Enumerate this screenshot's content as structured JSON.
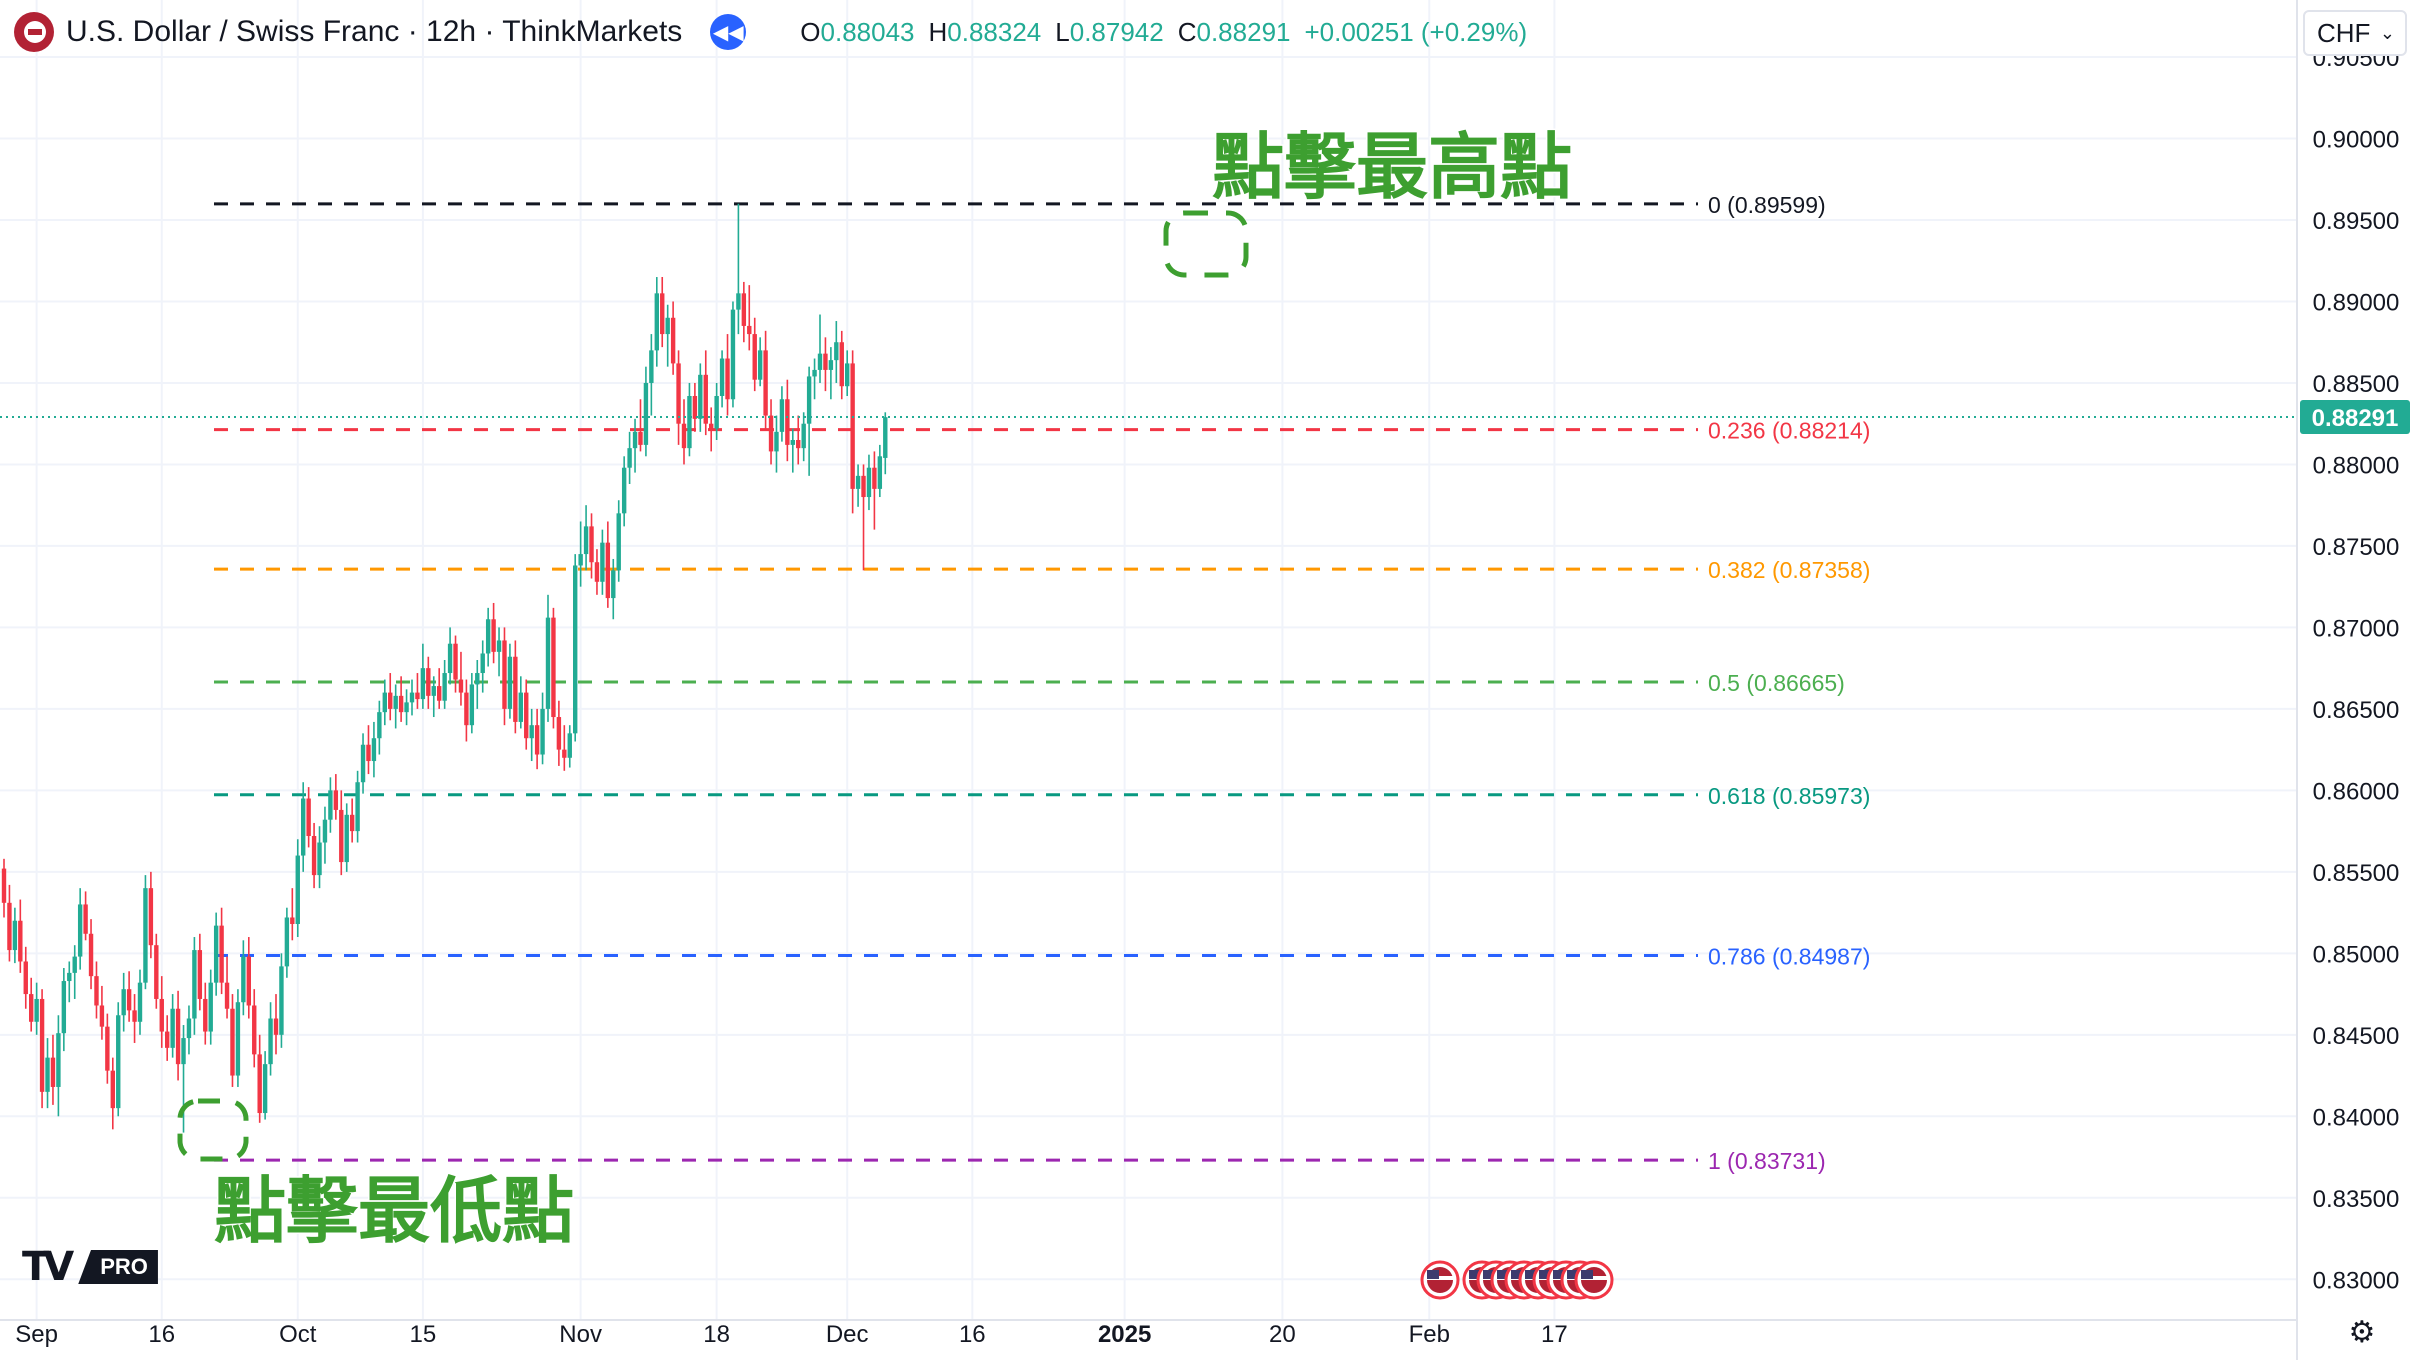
{
  "header": {
    "symbol": "U.S. Dollar / Swiss Franc · 12h · ThinkMarkets",
    "open_label": "O",
    "open": "0.88043",
    "high_label": "H",
    "high": "0.88324",
    "low_label": "L",
    "low": "0.87942",
    "close_label": "C",
    "close": "0.88291",
    "change": "+0.00251 (+0.29%)"
  },
  "currency_button": {
    "label": "CHF"
  },
  "logo": {
    "text": "PRO"
  },
  "icons": {
    "flag": "us-flag-icon",
    "replay": "rewind-icon",
    "dropdown": "chevron-down-icon",
    "settings": "gear-icon",
    "events": "us-flag-event-icon"
  },
  "colors": {
    "up": "#22ab94",
    "down": "#f23645",
    "annotation": "#3d9f30"
  },
  "annotations": {
    "high": "點擊最高點",
    "low": "點擊最低點"
  },
  "chart_data": {
    "type": "candlestick",
    "ylim": [
      0.8275,
      0.9085
    ],
    "y_ticks": [
      "0.90500",
      "0.90000",
      "0.89500",
      "0.89000",
      "0.88500",
      "0.88000",
      "0.87500",
      "0.87000",
      "0.86500",
      "0.86000",
      "0.85500",
      "0.85000",
      "0.84500",
      "0.84000",
      "0.83500",
      "0.83000"
    ],
    "x_ticks": [
      {
        "label": "Sep",
        "i": 6
      },
      {
        "label": "16",
        "i": 29
      },
      {
        "label": "Oct",
        "i": 54
      },
      {
        "label": "15",
        "i": 77
      },
      {
        "label": "Nov",
        "i": 106
      },
      {
        "label": "18",
        "i": 131
      },
      {
        "label": "Dec",
        "i": 155
      },
      {
        "label": "16",
        "i": 178
      },
      {
        "label": "2025",
        "i": 206
      },
      {
        "label": "20",
        "i": 235
      },
      {
        "label": "Feb",
        "i": 262
      },
      {
        "label": "17",
        "i": 285
      }
    ],
    "last_price": "0.88291",
    "fibonacci": [
      {
        "level": "0",
        "value": "0.89599",
        "color": "#131722"
      },
      {
        "level": "0.236",
        "value": "0.88214",
        "color": "#f23645"
      },
      {
        "level": "0.382",
        "value": "0.87358",
        "color": "#ff9800"
      },
      {
        "level": "0.5",
        "value": "0.86665",
        "color": "#4caf50"
      },
      {
        "level": "0.618",
        "value": "0.85973",
        "color": "#089981"
      },
      {
        "level": "0.786",
        "value": "0.84987",
        "color": "#2962ff"
      },
      {
        "level": "1",
        "value": "0.83731",
        "color": "#9c27b0"
      }
    ],
    "candles": [
      [
        0.8552,
        0.8558,
        0.8522,
        0.8531
      ],
      [
        0.8531,
        0.8542,
        0.8495,
        0.8502
      ],
      [
        0.8502,
        0.8528,
        0.8494,
        0.852
      ],
      [
        0.852,
        0.8533,
        0.8488,
        0.8495
      ],
      [
        0.8495,
        0.8504,
        0.8466,
        0.8475
      ],
      [
        0.8475,
        0.8485,
        0.8452,
        0.8458
      ],
      [
        0.8458,
        0.8482,
        0.845,
        0.8472
      ],
      [
        0.8472,
        0.8478,
        0.8405,
        0.8415
      ],
      [
        0.8415,
        0.8448,
        0.8405,
        0.8436
      ],
      [
        0.8436,
        0.845,
        0.8407,
        0.8418
      ],
      [
        0.8418,
        0.8462,
        0.84,
        0.8451
      ],
      [
        0.8451,
        0.8491,
        0.844,
        0.8483
      ],
      [
        0.8483,
        0.8495,
        0.847,
        0.8488
      ],
      [
        0.8488,
        0.8505,
        0.8472,
        0.8498
      ],
      [
        0.8498,
        0.854,
        0.849,
        0.853
      ],
      [
        0.853,
        0.8538,
        0.8508,
        0.8512
      ],
      [
        0.8512,
        0.8521,
        0.8478,
        0.8486
      ],
      [
        0.8486,
        0.8495,
        0.846,
        0.8468
      ],
      [
        0.8468,
        0.848,
        0.8447,
        0.8455
      ],
      [
        0.8455,
        0.8463,
        0.842,
        0.8428
      ],
      [
        0.8428,
        0.8436,
        0.8392,
        0.8405
      ],
      [
        0.8405,
        0.847,
        0.84,
        0.8462
      ],
      [
        0.8462,
        0.8488,
        0.8452,
        0.8478
      ],
      [
        0.8478,
        0.8489,
        0.8458,
        0.8465
      ],
      [
        0.8465,
        0.8475,
        0.8445,
        0.8458
      ],
      [
        0.8458,
        0.849,
        0.845,
        0.8482
      ],
      [
        0.8482,
        0.8548,
        0.8478,
        0.854
      ],
      [
        0.854,
        0.855,
        0.8497,
        0.8505
      ],
      [
        0.8505,
        0.8512,
        0.8466,
        0.8472
      ],
      [
        0.8472,
        0.8486,
        0.8442,
        0.8452
      ],
      [
        0.8452,
        0.8462,
        0.8434,
        0.8442
      ],
      [
        0.8442,
        0.8475,
        0.8436,
        0.8466
      ],
      [
        0.8466,
        0.8477,
        0.8422,
        0.8432
      ],
      [
        0.8432,
        0.8456,
        0.839,
        0.8448
      ],
      [
        0.8448,
        0.8468,
        0.8438,
        0.846
      ],
      [
        0.846,
        0.851,
        0.845,
        0.8502
      ],
      [
        0.8502,
        0.8512,
        0.8465,
        0.8472
      ],
      [
        0.8472,
        0.8482,
        0.8444,
        0.8452
      ],
      [
        0.8452,
        0.849,
        0.8444,
        0.8482
      ],
      [
        0.8482,
        0.8525,
        0.8474,
        0.8517
      ],
      [
        0.8517,
        0.8528,
        0.8475,
        0.8482
      ],
      [
        0.8482,
        0.8498,
        0.846,
        0.8466
      ],
      [
        0.8466,
        0.8475,
        0.8418,
        0.8425
      ],
      [
        0.8425,
        0.8478,
        0.8418,
        0.847
      ],
      [
        0.847,
        0.8508,
        0.8462,
        0.8498
      ],
      [
        0.8498,
        0.851,
        0.846,
        0.8468
      ],
      [
        0.8468,
        0.8478,
        0.843,
        0.8438
      ],
      [
        0.8438,
        0.845,
        0.8396,
        0.8402
      ],
      [
        0.8402,
        0.844,
        0.8398,
        0.8432
      ],
      [
        0.8432,
        0.847,
        0.8425,
        0.846
      ],
      [
        0.846,
        0.8475,
        0.8438,
        0.845
      ],
      [
        0.845,
        0.85,
        0.8442,
        0.8492
      ],
      [
        0.8492,
        0.8528,
        0.8485,
        0.8522
      ],
      [
        0.8522,
        0.854,
        0.8508,
        0.8518
      ],
      [
        0.8518,
        0.857,
        0.851,
        0.856
      ],
      [
        0.856,
        0.8605,
        0.855,
        0.8595
      ],
      [
        0.8595,
        0.8602,
        0.8565,
        0.8572
      ],
      [
        0.8572,
        0.858,
        0.854,
        0.8548
      ],
      [
        0.8548,
        0.8578,
        0.854,
        0.8568
      ],
      [
        0.8568,
        0.859,
        0.8555,
        0.8582
      ],
      [
        0.8582,
        0.8608,
        0.8574,
        0.86
      ],
      [
        0.86,
        0.861,
        0.8582,
        0.8588
      ],
      [
        0.8588,
        0.86,
        0.8548,
        0.8556
      ],
      [
        0.8556,
        0.8592,
        0.855,
        0.8585
      ],
      [
        0.8585,
        0.8595,
        0.8568,
        0.8575
      ],
      [
        0.8575,
        0.8612,
        0.8568,
        0.8605
      ],
      [
        0.8605,
        0.8635,
        0.8598,
        0.8628
      ],
      [
        0.8628,
        0.864,
        0.861,
        0.8618
      ],
      [
        0.8618,
        0.8642,
        0.8608,
        0.8632
      ],
      [
        0.8632,
        0.8655,
        0.8622,
        0.8648
      ],
      [
        0.8648,
        0.8668,
        0.864,
        0.866
      ],
      [
        0.866,
        0.8672,
        0.8643,
        0.865
      ],
      [
        0.865,
        0.8665,
        0.8638,
        0.8658
      ],
      [
        0.8658,
        0.867,
        0.8642,
        0.8648
      ],
      [
        0.8648,
        0.8662,
        0.864,
        0.8654
      ],
      [
        0.8654,
        0.8668,
        0.8646,
        0.866
      ],
      [
        0.866,
        0.8672,
        0.865,
        0.8656
      ],
      [
        0.8656,
        0.869,
        0.865,
        0.8675
      ],
      [
        0.8675,
        0.8682,
        0.865,
        0.8658
      ],
      [
        0.8658,
        0.867,
        0.8645,
        0.8664
      ],
      [
        0.8664,
        0.8675,
        0.865,
        0.8655
      ],
      [
        0.8655,
        0.868,
        0.865,
        0.8672
      ],
      [
        0.8672,
        0.87,
        0.8665,
        0.869
      ],
      [
        0.869,
        0.8695,
        0.866,
        0.8668
      ],
      [
        0.8668,
        0.8685,
        0.8652,
        0.866
      ],
      [
        0.866,
        0.8668,
        0.863,
        0.864
      ],
      [
        0.864,
        0.8672,
        0.8635,
        0.8665
      ],
      [
        0.8665,
        0.868,
        0.865,
        0.8672
      ],
      [
        0.8672,
        0.8692,
        0.866,
        0.8684
      ],
      [
        0.8684,
        0.8712,
        0.8676,
        0.8705
      ],
      [
        0.8705,
        0.8715,
        0.8678,
        0.8685
      ],
      [
        0.8685,
        0.87,
        0.867,
        0.8692
      ],
      [
        0.8692,
        0.87,
        0.864,
        0.865
      ],
      [
        0.865,
        0.869,
        0.8644,
        0.8682
      ],
      [
        0.8682,
        0.8692,
        0.8635,
        0.8642
      ],
      [
        0.8642,
        0.867,
        0.8638,
        0.866
      ],
      [
        0.866,
        0.8668,
        0.8625,
        0.8632
      ],
      [
        0.8632,
        0.865,
        0.8618,
        0.864
      ],
      [
        0.864,
        0.865,
        0.8613,
        0.8622
      ],
      [
        0.8622,
        0.866,
        0.8616,
        0.865
      ],
      [
        0.865,
        0.872,
        0.8642,
        0.8706
      ],
      [
        0.8706,
        0.8712,
        0.8638,
        0.8645
      ],
      [
        0.8645,
        0.8655,
        0.8615,
        0.8625
      ],
      [
        0.8625,
        0.864,
        0.8612,
        0.862
      ],
      [
        0.862,
        0.864,
        0.8614,
        0.8635
      ],
      [
        0.8635,
        0.8745,
        0.863,
        0.8738
      ],
      [
        0.8738,
        0.8765,
        0.8725,
        0.8745
      ],
      [
        0.8745,
        0.8775,
        0.8735,
        0.8762
      ],
      [
        0.8762,
        0.877,
        0.873,
        0.874
      ],
      [
        0.874,
        0.8748,
        0.872,
        0.8728
      ],
      [
        0.8728,
        0.876,
        0.872,
        0.8752
      ],
      [
        0.8752,
        0.8765,
        0.8712,
        0.8718
      ],
      [
        0.8718,
        0.8742,
        0.8705,
        0.8735
      ],
      [
        0.8735,
        0.8778,
        0.8728,
        0.877
      ],
      [
        0.877,
        0.8805,
        0.8762,
        0.8798
      ],
      [
        0.8798,
        0.882,
        0.8788,
        0.881
      ],
      [
        0.881,
        0.8828,
        0.8795,
        0.882
      ],
      [
        0.882,
        0.884,
        0.8808,
        0.8812
      ],
      [
        0.8812,
        0.886,
        0.8805,
        0.885
      ],
      [
        0.885,
        0.888,
        0.883,
        0.887
      ],
      [
        0.887,
        0.8915,
        0.886,
        0.8905
      ],
      [
        0.8905,
        0.8915,
        0.8872,
        0.888
      ],
      [
        0.888,
        0.8898,
        0.886,
        0.889
      ],
      [
        0.889,
        0.89,
        0.8855,
        0.8862
      ],
      [
        0.8862,
        0.887,
        0.8812,
        0.8825
      ],
      [
        0.8825,
        0.884,
        0.88,
        0.881
      ],
      [
        0.881,
        0.885,
        0.8805,
        0.8842
      ],
      [
        0.8842,
        0.885,
        0.882,
        0.8828
      ],
      [
        0.8828,
        0.8862,
        0.882,
        0.8855
      ],
      [
        0.8855,
        0.887,
        0.8818,
        0.8825
      ],
      [
        0.8825,
        0.8835,
        0.8808,
        0.8822
      ],
      [
        0.8822,
        0.885,
        0.8815,
        0.8842
      ],
      [
        0.8842,
        0.887,
        0.8835,
        0.8865
      ],
      [
        0.8865,
        0.888,
        0.883,
        0.884
      ],
      [
        0.884,
        0.89,
        0.8835,
        0.8895
      ],
      [
        0.8895,
        0.896,
        0.888,
        0.8905
      ],
      [
        0.8905,
        0.8912,
        0.8875,
        0.8885
      ],
      [
        0.8885,
        0.891,
        0.887,
        0.888
      ],
      [
        0.888,
        0.889,
        0.8845,
        0.8852
      ],
      [
        0.8852,
        0.8878,
        0.8848,
        0.887
      ],
      [
        0.887,
        0.8882,
        0.8822,
        0.883
      ],
      [
        0.883,
        0.884,
        0.88,
        0.8808
      ],
      [
        0.8808,
        0.883,
        0.8795,
        0.882
      ],
      [
        0.882,
        0.8848,
        0.8814,
        0.884
      ],
      [
        0.884,
        0.8852,
        0.8802,
        0.8812
      ],
      [
        0.8812,
        0.8822,
        0.8795,
        0.8815
      ],
      [
        0.8815,
        0.883,
        0.88,
        0.881
      ],
      [
        0.881,
        0.8832,
        0.8802,
        0.8825
      ],
      [
        0.8825,
        0.886,
        0.8793,
        0.8854
      ],
      [
        0.8854,
        0.8865,
        0.884,
        0.8858
      ],
      [
        0.8858,
        0.8892,
        0.885,
        0.8868
      ],
      [
        0.8868,
        0.8878,
        0.8845,
        0.8858
      ],
      [
        0.8858,
        0.8872,
        0.884,
        0.8864
      ],
      [
        0.8864,
        0.8888,
        0.885,
        0.8875
      ],
      [
        0.8875,
        0.8882,
        0.884,
        0.8848
      ],
      [
        0.8848,
        0.887,
        0.8842,
        0.8862
      ],
      [
        0.8862,
        0.887,
        0.877,
        0.8785
      ],
      [
        0.8785,
        0.88,
        0.8774,
        0.8793
      ],
      [
        0.8793,
        0.88,
        0.8735,
        0.878
      ],
      [
        0.878,
        0.8806,
        0.8772,
        0.8798
      ],
      [
        0.8798,
        0.8808,
        0.876,
        0.8785
      ],
      [
        0.8785,
        0.8812,
        0.878,
        0.8805
      ],
      [
        0.8804,
        0.8832,
        0.8794,
        0.8829
      ]
    ]
  }
}
